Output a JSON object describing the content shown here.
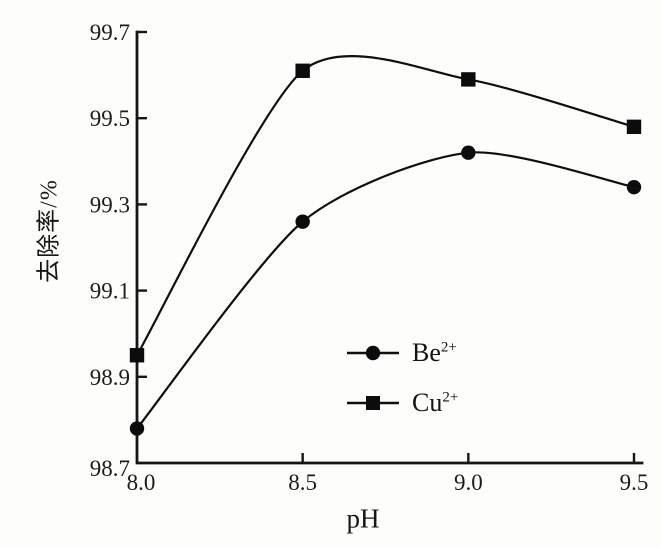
{
  "figure": {
    "background": "#fdfdfb",
    "ink": "#161616"
  },
  "chart_data": {
    "type": "line",
    "title": "",
    "xlabel": "pH",
    "ylabel": "去除率/%",
    "x": [
      8.0,
      8.5,
      9.0,
      9.5
    ],
    "x_ticks": [
      "8.0",
      "8.5",
      "9.0",
      "9.5"
    ],
    "y_ticks": [
      "98.7",
      "98.9",
      "99.1",
      "99.3",
      "99.5",
      "99.7"
    ],
    "xlim": [
      8.0,
      9.5
    ],
    "ylim": [
      98.7,
      99.7
    ],
    "grid": false,
    "line_color": "#0f0f0f",
    "legend_position": "inside-lower-right",
    "series": [
      {
        "name": "be2plus",
        "label_base": "Be",
        "label_sup": "2+",
        "marker": "circle",
        "values": [
          98.78,
          99.26,
          99.42,
          99.34
        ]
      },
      {
        "name": "cu2plus",
        "label_base": "Cu",
        "label_sup": "2+",
        "marker": "square",
        "values": [
          98.95,
          99.61,
          99.59,
          99.48
        ]
      }
    ]
  }
}
